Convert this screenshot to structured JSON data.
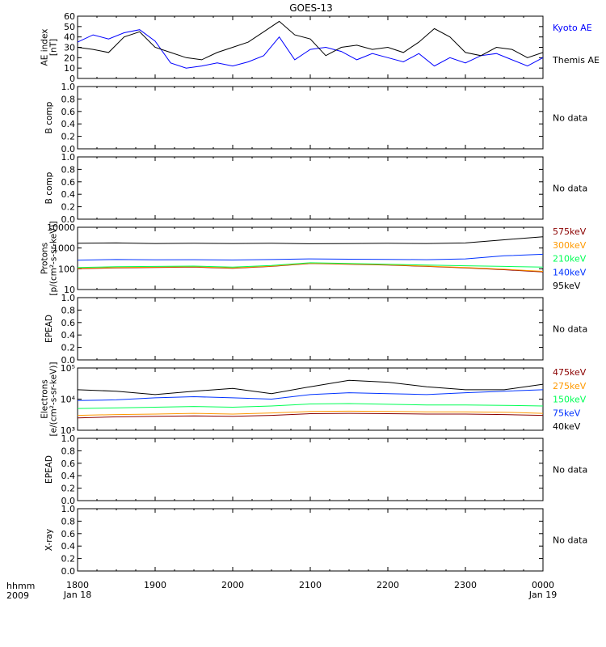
{
  "title": "GOES-13",
  "corner_labels": {
    "line1": "hhmm",
    "line2": "2009"
  },
  "x_axis": {
    "ticks": [
      "1800",
      "1900",
      "2000",
      "2100",
      "2200",
      "2300",
      "0000"
    ],
    "start_date": "Jan 18",
    "end_date": "Jan 19"
  },
  "chart_data": [
    {
      "type": "line",
      "ylabel_lines": [
        "AE index",
        "[nT]"
      ],
      "yticks": [
        "0",
        "10",
        "20",
        "30",
        "40",
        "50",
        "60"
      ],
      "ylim": [
        0,
        60
      ],
      "x_range_hours": [
        18,
        24
      ],
      "series": [
        {
          "name": "Kyoto AE",
          "color": "#0000ff",
          "x": [
            18.0,
            18.2,
            18.4,
            18.6,
            18.8,
            19.0,
            19.2,
            19.4,
            19.6,
            19.8,
            20.0,
            20.2,
            20.4,
            20.6,
            20.8,
            21.0,
            21.2,
            21.4,
            21.6,
            21.8,
            22.0,
            22.2,
            22.4,
            22.6,
            22.8,
            23.0,
            23.2,
            23.4,
            23.6,
            23.8,
            24.0
          ],
          "y": [
            35,
            42,
            38,
            44,
            47,
            36,
            15,
            10,
            12,
            15,
            12,
            16,
            22,
            40,
            18,
            28,
            30,
            26,
            18,
            24,
            20,
            16,
            24,
            12,
            20,
            15,
            22,
            24,
            18,
            12,
            20
          ]
        },
        {
          "name": "Themis AE",
          "color": "#000000",
          "x": [
            18.0,
            18.2,
            18.4,
            18.6,
            18.8,
            19.0,
            19.2,
            19.4,
            19.6,
            19.8,
            20.0,
            20.2,
            20.4,
            20.6,
            20.8,
            21.0,
            21.2,
            21.4,
            21.6,
            21.8,
            22.0,
            22.2,
            22.4,
            22.6,
            22.8,
            23.0,
            23.2,
            23.4,
            23.6,
            23.8,
            24.0
          ],
          "y": [
            30,
            28,
            25,
            40,
            45,
            30,
            25,
            20,
            18,
            25,
            30,
            35,
            45,
            55,
            42,
            38,
            22,
            30,
            32,
            28,
            30,
            25,
            35,
            48,
            40,
            25,
            22,
            30,
            28,
            20,
            25
          ]
        }
      ]
    },
    {
      "type": "line",
      "ylabel_lines": [
        "B comp"
      ],
      "yticks": [
        "0.0",
        "0.2",
        "0.4",
        "0.6",
        "0.8",
        "1.0"
      ],
      "ylim": [
        0,
        1
      ],
      "note": "No data",
      "series": []
    },
    {
      "type": "line",
      "ylabel_lines": [
        "B comp"
      ],
      "yticks": [
        "0.0",
        "0.2",
        "0.4",
        "0.6",
        "0.8",
        "1.0"
      ],
      "ylim": [
        0,
        1
      ],
      "note": "No data",
      "series": []
    },
    {
      "type": "line",
      "yscale": "log",
      "ylabel_lines": [
        "Protons",
        "[p/(cm²-s-sr-keV)]"
      ],
      "yticks": [
        "10",
        "100",
        "1000",
        "10000"
      ],
      "ylim": [
        10,
        10000
      ],
      "x_range_hours": [
        18,
        24
      ],
      "series": [
        {
          "name": "575keV",
          "color": "#8b0000",
          "x": [
            18,
            18.5,
            19,
            19.5,
            20,
            20.5,
            21,
            21.5,
            22,
            22.5,
            23,
            23.5,
            24
          ],
          "y": [
            100,
            110,
            115,
            120,
            105,
            130,
            180,
            165,
            150,
            130,
            110,
            90,
            70
          ]
        },
        {
          "name": "300keV",
          "color": "#ff9900",
          "x": [
            18,
            18.5,
            19,
            19.5,
            20,
            20.5,
            21,
            21.5,
            22,
            22.5,
            23,
            23.5,
            24
          ],
          "y": [
            105,
            115,
            120,
            125,
            110,
            135,
            185,
            170,
            155,
            135,
            115,
            95,
            75
          ]
        },
        {
          "name": "210keV",
          "color": "#00ff55",
          "x": [
            18,
            18.5,
            19,
            19.5,
            20,
            20.5,
            21,
            21.5,
            22,
            22.5,
            23,
            23.5,
            24
          ],
          "y": [
            115,
            125,
            130,
            135,
            120,
            145,
            195,
            180,
            165,
            150,
            140,
            130,
            120
          ]
        },
        {
          "name": "140keV",
          "color": "#0033ff",
          "x": [
            18,
            18.5,
            19,
            19.5,
            20,
            20.5,
            21,
            21.5,
            22,
            22.5,
            23,
            23.5,
            24
          ],
          "y": [
            260,
            280,
            270,
            275,
            265,
            280,
            300,
            290,
            285,
            275,
            300,
            420,
            500
          ]
        },
        {
          "name": "95keV",
          "color": "#000000",
          "x": [
            18,
            18.5,
            19,
            19.5,
            20,
            20.5,
            21,
            21.5,
            22,
            22.5,
            23,
            23.5,
            24
          ],
          "y": [
            1700,
            1750,
            1650,
            1700,
            1650,
            1700,
            1600,
            1650,
            1700,
            1650,
            1750,
            2500,
            3500
          ]
        }
      ]
    },
    {
      "type": "line",
      "ylabel_lines": [
        "EPEAD"
      ],
      "yticks": [
        "0.0",
        "0.2",
        "0.4",
        "0.6",
        "0.8",
        "1.0"
      ],
      "ylim": [
        0,
        1
      ],
      "note": "No data",
      "series": []
    },
    {
      "type": "line",
      "yscale": "log",
      "ylabel_lines": [
        "Electrons",
        "[e/(cm²-s-sr-keV)]"
      ],
      "yticks": [
        "10³",
        "10⁴",
        "10⁵"
      ],
      "ylim": [
        1000,
        100000
      ],
      "x_range_hours": [
        18,
        24
      ],
      "series": [
        {
          "name": "475keV",
          "color": "#8b0000",
          "x": [
            18,
            18.5,
            19,
            19.5,
            20,
            20.5,
            21,
            21.5,
            22,
            22.5,
            23,
            23.5,
            24
          ],
          "y": [
            2500,
            2700,
            2800,
            2900,
            2800,
            3000,
            3400,
            3500,
            3400,
            3300,
            3300,
            3200,
            3000
          ]
        },
        {
          "name": "275keV",
          "color": "#ff9900",
          "x": [
            18,
            18.5,
            19,
            19.5,
            20,
            20.5,
            21,
            21.5,
            22,
            22.5,
            23,
            23.5,
            24
          ],
          "y": [
            3000,
            3200,
            3300,
            3500,
            3300,
            3600,
            4000,
            4100,
            4000,
            3900,
            3900,
            3800,
            3500
          ]
        },
        {
          "name": "150keV",
          "color": "#00ff55",
          "x": [
            18,
            18.5,
            19,
            19.5,
            20,
            20.5,
            21,
            21.5,
            22,
            22.5,
            23,
            23.5,
            24
          ],
          "y": [
            5000,
            5200,
            5500,
            5800,
            5500,
            6000,
            7000,
            7200,
            6800,
            6500,
            6500,
            6300,
            6000
          ]
        },
        {
          "name": "75keV",
          "color": "#0033ff",
          "x": [
            18,
            18.5,
            19,
            19.5,
            20,
            20.5,
            21,
            21.5,
            22,
            22.5,
            23,
            23.5,
            24
          ],
          "y": [
            9000,
            9500,
            11000,
            12000,
            11000,
            10000,
            14000,
            16000,
            15000,
            14000,
            16000,
            18000,
            20000
          ]
        },
        {
          "name": "40keV",
          "color": "#000000",
          "x": [
            18,
            18.5,
            19,
            19.5,
            20,
            20.5,
            21,
            21.5,
            22,
            22.5,
            23,
            23.5,
            24
          ],
          "y": [
            20000,
            18000,
            14000,
            18000,
            22000,
            15000,
            25000,
            40000,
            35000,
            25000,
            20000,
            20000,
            30000
          ]
        }
      ]
    },
    {
      "type": "line",
      "ylabel_lines": [
        "EPEAD"
      ],
      "yticks": [
        "0.0",
        "0.2",
        "0.4",
        "0.6",
        "0.8",
        "1.0"
      ],
      "ylim": [
        0,
        1
      ],
      "note": "No data",
      "series": []
    },
    {
      "type": "line",
      "ylabel_lines": [
        "X-ray"
      ],
      "yticks": [
        "0.0",
        "0.2",
        "0.4",
        "0.6",
        "0.8",
        "1.0"
      ],
      "ylim": [
        0,
        1
      ],
      "note": "No data",
      "series": []
    }
  ]
}
